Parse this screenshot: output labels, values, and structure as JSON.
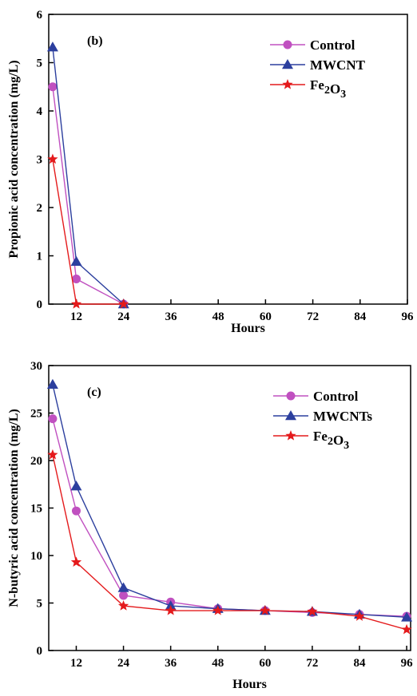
{
  "colors": {
    "control": "#c050c0",
    "mwcnt": "#2c3f9e",
    "fe2o3": "#e41a1c"
  },
  "chart_data": [
    {
      "type": "line",
      "panel_label": "(b)",
      "xlabel": "Hours",
      "ylabel": "Propionic acid concentration (mg/L)",
      "xlim": [
        5,
        96
      ],
      "ylim": [
        0,
        6
      ],
      "xticks": [
        12,
        24,
        36,
        48,
        60,
        72,
        84,
        96
      ],
      "yticks": [
        0,
        1,
        2,
        3,
        4,
        5,
        6
      ],
      "legend_position": "top-right",
      "series": [
        {
          "name": "Control",
          "marker": "circle",
          "color": "#c050c0",
          "x": [
            6,
            12,
            24
          ],
          "y": [
            4.5,
            0.52,
            0.0
          ]
        },
        {
          "name": "MWCNT",
          "marker": "triangle",
          "color": "#2c3f9e",
          "x": [
            6,
            12,
            24
          ],
          "y": [
            5.32,
            0.88,
            0.0
          ]
        },
        {
          "name": "Fe2O3",
          "marker": "star",
          "color": "#e41a1c",
          "x": [
            6,
            12,
            24
          ],
          "y": [
            3.0,
            0.0,
            0.0
          ]
        }
      ]
    },
    {
      "type": "line",
      "panel_label": "(c)",
      "xlabel": "Hours",
      "ylabel": "N-butyric acid concentration (mg/L)",
      "xlim": [
        5,
        97
      ],
      "ylim": [
        0,
        30
      ],
      "xticks": [
        12,
        24,
        36,
        48,
        60,
        72,
        84,
        96
      ],
      "yticks": [
        0,
        5,
        10,
        15,
        20,
        25,
        30
      ],
      "legend_position": "top-right",
      "series": [
        {
          "name": "Control",
          "marker": "circle",
          "color": "#c050c0",
          "x": [
            6,
            12,
            24,
            36,
            48,
            60,
            72,
            84,
            96
          ],
          "y": [
            24.4,
            14.7,
            5.8,
            5.1,
            4.4,
            4.2,
            4.0,
            3.8,
            3.6
          ]
        },
        {
          "name": "MWCNTs",
          "marker": "triangle",
          "color": "#2c3f9e",
          "x": [
            6,
            12,
            24,
            36,
            48,
            60,
            72,
            84,
            96
          ],
          "y": [
            28.0,
            17.3,
            6.6,
            4.7,
            4.4,
            4.2,
            4.1,
            3.8,
            3.5
          ]
        },
        {
          "name": "Fe2O3",
          "marker": "star",
          "color": "#e41a1c",
          "x": [
            6,
            12,
            24,
            36,
            48,
            60,
            72,
            84,
            96
          ],
          "y": [
            20.6,
            9.3,
            4.7,
            4.2,
            4.2,
            4.2,
            4.1,
            3.6,
            2.2
          ]
        }
      ]
    }
  ]
}
